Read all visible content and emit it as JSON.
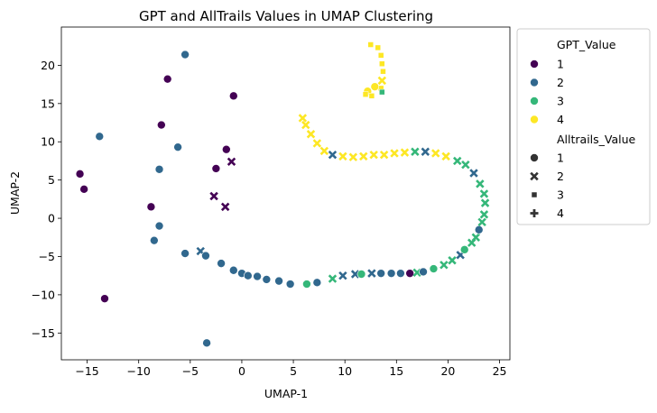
{
  "chart_data": {
    "type": "scatter",
    "title": "GPT and AllTrails Values in UMAP Clustering",
    "xlabel": "UMAP-1",
    "ylabel": "UMAP-2",
    "xlim": [
      -17.5,
      26
    ],
    "ylim": [
      -18.5,
      25
    ],
    "xticks": [
      -15,
      -10,
      -5,
      0,
      5,
      10,
      15,
      20,
      25
    ],
    "yticks": [
      -15,
      -10,
      -5,
      0,
      5,
      10,
      15,
      20
    ],
    "grid": false,
    "colors": {
      "1": "#440154",
      "2": "#31688e",
      "3": "#35b779",
      "4": "#fde725"
    },
    "legend": {
      "placement": "outside-right",
      "hue_title": "GPT_Value",
      "hue_entries": [
        {
          "label": "1",
          "gpt": 1
        },
        {
          "label": "2",
          "gpt": 2
        },
        {
          "label": "3",
          "gpt": 3
        },
        {
          "label": "4",
          "gpt": 4
        }
      ],
      "style_title": "Alltrails_Value",
      "style_entries": [
        {
          "label": "1",
          "marker": "circle"
        },
        {
          "label": "2",
          "marker": "x"
        },
        {
          "label": "3",
          "marker": "square"
        },
        {
          "label": "4",
          "marker": "plus"
        }
      ]
    },
    "points": [
      {
        "x": -15.7,
        "y": 5.8,
        "gpt": 1,
        "alltrails": 1
      },
      {
        "x": -15.3,
        "y": 3.8,
        "gpt": 1,
        "alltrails": 1
      },
      {
        "x": -13.3,
        "y": -10.5,
        "gpt": 1,
        "alltrails": 1
      },
      {
        "x": -13.8,
        "y": 10.7,
        "gpt": 2,
        "alltrails": 1
      },
      {
        "x": -7.2,
        "y": 18.2,
        "gpt": 1,
        "alltrails": 1
      },
      {
        "x": -5.5,
        "y": 21.4,
        "gpt": 2,
        "alltrails": 1
      },
      {
        "x": -0.8,
        "y": 16.0,
        "gpt": 1,
        "alltrails": 1
      },
      {
        "x": -7.8,
        "y": 12.2,
        "gpt": 1,
        "alltrails": 1
      },
      {
        "x": -6.2,
        "y": 9.3,
        "gpt": 2,
        "alltrails": 1
      },
      {
        "x": -1.5,
        "y": 9.0,
        "gpt": 1,
        "alltrails": 1
      },
      {
        "x": -8.0,
        "y": 6.4,
        "gpt": 2,
        "alltrails": 1
      },
      {
        "x": -2.5,
        "y": 6.5,
        "gpt": 1,
        "alltrails": 1
      },
      {
        "x": -1.0,
        "y": 7.4,
        "gpt": 1,
        "alltrails": 2
      },
      {
        "x": -2.7,
        "y": 2.9,
        "gpt": 1,
        "alltrails": 2
      },
      {
        "x": -1.6,
        "y": 1.5,
        "gpt": 1,
        "alltrails": 2
      },
      {
        "x": -8.8,
        "y": 1.5,
        "gpt": 1,
        "alltrails": 1
      },
      {
        "x": -8.0,
        "y": -1.0,
        "gpt": 2,
        "alltrails": 1
      },
      {
        "x": -8.5,
        "y": -2.9,
        "gpt": 2,
        "alltrails": 1
      },
      {
        "x": -5.5,
        "y": -4.6,
        "gpt": 2,
        "alltrails": 1
      },
      {
        "x": -4.0,
        "y": -4.3,
        "gpt": 2,
        "alltrails": 2
      },
      {
        "x": -3.5,
        "y": -4.9,
        "gpt": 2,
        "alltrails": 1
      },
      {
        "x": -2.0,
        "y": -5.9,
        "gpt": 2,
        "alltrails": 1
      },
      {
        "x": -3.4,
        "y": -16.3,
        "gpt": 2,
        "alltrails": 1
      },
      {
        "x": -0.8,
        "y": -6.8,
        "gpt": 2,
        "alltrails": 1
      },
      {
        "x": 0.0,
        "y": -7.2,
        "gpt": 2,
        "alltrails": 1
      },
      {
        "x": 0.6,
        "y": -7.5,
        "gpt": 2,
        "alltrails": 1
      },
      {
        "x": 1.5,
        "y": -7.6,
        "gpt": 2,
        "alltrails": 1
      },
      {
        "x": 2.4,
        "y": -8.0,
        "gpt": 2,
        "alltrails": 1
      },
      {
        "x": 3.6,
        "y": -8.2,
        "gpt": 2,
        "alltrails": 1
      },
      {
        "x": 4.7,
        "y": -8.6,
        "gpt": 2,
        "alltrails": 1
      },
      {
        "x": 6.3,
        "y": -8.6,
        "gpt": 3,
        "alltrails": 1
      },
      {
        "x": 7.3,
        "y": -8.4,
        "gpt": 2,
        "alltrails": 1
      },
      {
        "x": 8.8,
        "y": -7.9,
        "gpt": 3,
        "alltrails": 2
      },
      {
        "x": 9.8,
        "y": -7.5,
        "gpt": 2,
        "alltrails": 2
      },
      {
        "x": 11.0,
        "y": -7.3,
        "gpt": 2,
        "alltrails": 2
      },
      {
        "x": 11.6,
        "y": -7.3,
        "gpt": 3,
        "alltrails": 1
      },
      {
        "x": 12.6,
        "y": -7.2,
        "gpt": 2,
        "alltrails": 2
      },
      {
        "x": 13.5,
        "y": -7.2,
        "gpt": 2,
        "alltrails": 1
      },
      {
        "x": 14.5,
        "y": -7.2,
        "gpt": 2,
        "alltrails": 1
      },
      {
        "x": 15.4,
        "y": -7.2,
        "gpt": 2,
        "alltrails": 1
      },
      {
        "x": 16.3,
        "y": -7.2,
        "gpt": 1,
        "alltrails": 1
      },
      {
        "x": 17.0,
        "y": -7.1,
        "gpt": 3,
        "alltrails": 2
      },
      {
        "x": 17.6,
        "y": -7.0,
        "gpt": 2,
        "alltrails": 1
      },
      {
        "x": 18.6,
        "y": -6.6,
        "gpt": 3,
        "alltrails": 1
      },
      {
        "x": 19.6,
        "y": -6.1,
        "gpt": 3,
        "alltrails": 2
      },
      {
        "x": 20.4,
        "y": -5.5,
        "gpt": 3,
        "alltrails": 2
      },
      {
        "x": 21.2,
        "y": -4.8,
        "gpt": 2,
        "alltrails": 2
      },
      {
        "x": 21.6,
        "y": -4.1,
        "gpt": 3,
        "alltrails": 1
      },
      {
        "x": 22.3,
        "y": -3.2,
        "gpt": 3,
        "alltrails": 2
      },
      {
        "x": 22.7,
        "y": -2.5,
        "gpt": 3,
        "alltrails": 2
      },
      {
        "x": 23.0,
        "y": -1.5,
        "gpt": 2,
        "alltrails": 1
      },
      {
        "x": 23.3,
        "y": -0.5,
        "gpt": 3,
        "alltrails": 2
      },
      {
        "x": 23.5,
        "y": 0.5,
        "gpt": 3,
        "alltrails": 2
      },
      {
        "x": 23.6,
        "y": 2.0,
        "gpt": 3,
        "alltrails": 2
      },
      {
        "x": 23.5,
        "y": 3.2,
        "gpt": 3,
        "alltrails": 2
      },
      {
        "x": 23.1,
        "y": 4.5,
        "gpt": 3,
        "alltrails": 2
      },
      {
        "x": 22.5,
        "y": 5.9,
        "gpt": 2,
        "alltrails": 2
      },
      {
        "x": 21.7,
        "y": 7.0,
        "gpt": 3,
        "alltrails": 2
      },
      {
        "x": 20.9,
        "y": 7.5,
        "gpt": 3,
        "alltrails": 2
      },
      {
        "x": 19.8,
        "y": 8.1,
        "gpt": 4,
        "alltrails": 2
      },
      {
        "x": 18.8,
        "y": 8.5,
        "gpt": 4,
        "alltrails": 2
      },
      {
        "x": 17.8,
        "y": 8.7,
        "gpt": 2,
        "alltrails": 2
      },
      {
        "x": 16.8,
        "y": 8.7,
        "gpt": 3,
        "alltrails": 2
      },
      {
        "x": 15.8,
        "y": 8.6,
        "gpt": 4,
        "alltrails": 2
      },
      {
        "x": 14.8,
        "y": 8.5,
        "gpt": 4,
        "alltrails": 2
      },
      {
        "x": 13.8,
        "y": 8.3,
        "gpt": 4,
        "alltrails": 2
      },
      {
        "x": 12.8,
        "y": 8.3,
        "gpt": 4,
        "alltrails": 2
      },
      {
        "x": 11.8,
        "y": 8.1,
        "gpt": 4,
        "alltrails": 2
      },
      {
        "x": 10.8,
        "y": 8.0,
        "gpt": 4,
        "alltrails": 2
      },
      {
        "x": 9.8,
        "y": 8.1,
        "gpt": 4,
        "alltrails": 2
      },
      {
        "x": 8.8,
        "y": 8.3,
        "gpt": 2,
        "alltrails": 2
      },
      {
        "x": 8.0,
        "y": 8.8,
        "gpt": 4,
        "alltrails": 2
      },
      {
        "x": 7.3,
        "y": 9.8,
        "gpt": 4,
        "alltrails": 2
      },
      {
        "x": 6.7,
        "y": 11.0,
        "gpt": 4,
        "alltrails": 2
      },
      {
        "x": 6.2,
        "y": 12.2,
        "gpt": 4,
        "alltrails": 2
      },
      {
        "x": 5.9,
        "y": 13.1,
        "gpt": 4,
        "alltrails": 2
      },
      {
        "x": 12.5,
        "y": 22.7,
        "gpt": 4,
        "alltrails": 3
      },
      {
        "x": 13.2,
        "y": 22.3,
        "gpt": 4,
        "alltrails": 3
      },
      {
        "x": 13.5,
        "y": 21.3,
        "gpt": 4,
        "alltrails": 3
      },
      {
        "x": 13.6,
        "y": 20.2,
        "gpt": 4,
        "alltrails": 3
      },
      {
        "x": 13.7,
        "y": 19.2,
        "gpt": 4,
        "alltrails": 3
      },
      {
        "x": 13.6,
        "y": 18.0,
        "gpt": 4,
        "alltrails": 2
      },
      {
        "x": 13.5,
        "y": 17.0,
        "gpt": 4,
        "alltrails": 3
      },
      {
        "x": 13.6,
        "y": 16.5,
        "gpt": 3,
        "alltrails": 3
      },
      {
        "x": 12.9,
        "y": 17.2,
        "gpt": 4,
        "alltrails": 1
      },
      {
        "x": 12.2,
        "y": 16.6,
        "gpt": 4,
        "alltrails": 1
      },
      {
        "x": 12.0,
        "y": 16.2,
        "gpt": 4,
        "alltrails": 3
      },
      {
        "x": 12.6,
        "y": 16.0,
        "gpt": 4,
        "alltrails": 3
      }
    ]
  }
}
